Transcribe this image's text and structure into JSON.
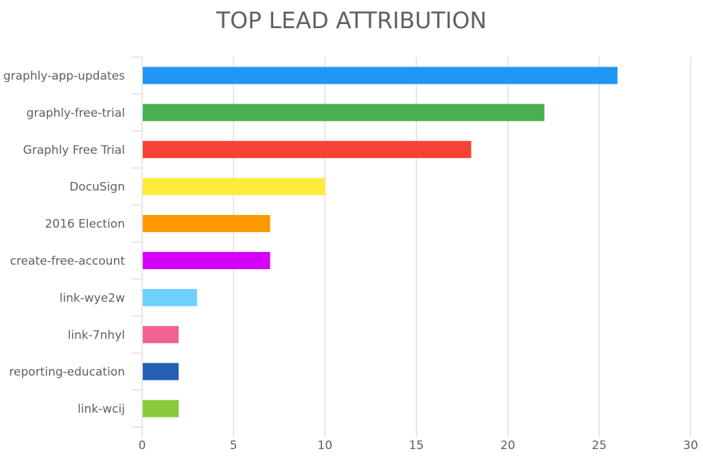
{
  "chart_data": {
    "type": "bar",
    "orientation": "horizontal",
    "title": "TOP LEAD ATTRIBUTION",
    "xlabel": "",
    "ylabel": "",
    "xlim": [
      0,
      30
    ],
    "xticks": [
      "0",
      "5",
      "10",
      "15",
      "20",
      "25",
      "30"
    ],
    "grid": true,
    "categories": [
      "graphly-app-updates",
      "graphly-free-trial",
      "Graphly Free Trial",
      "DocuSign",
      "2016 Election",
      "create-free-account",
      "link-wye2w",
      "link-7nhyl",
      "reporting-education",
      "link-wcij"
    ],
    "values": [
      26,
      22,
      18,
      10,
      7,
      7,
      3,
      2,
      2,
      2
    ],
    "colors": [
      "#2196f3",
      "#4caf50",
      "#f44336",
      "#ffeb3b",
      "#ff9800",
      "#d500f9",
      "#6dd0fd",
      "#f06292",
      "#2360b5",
      "#87c93b"
    ]
  }
}
